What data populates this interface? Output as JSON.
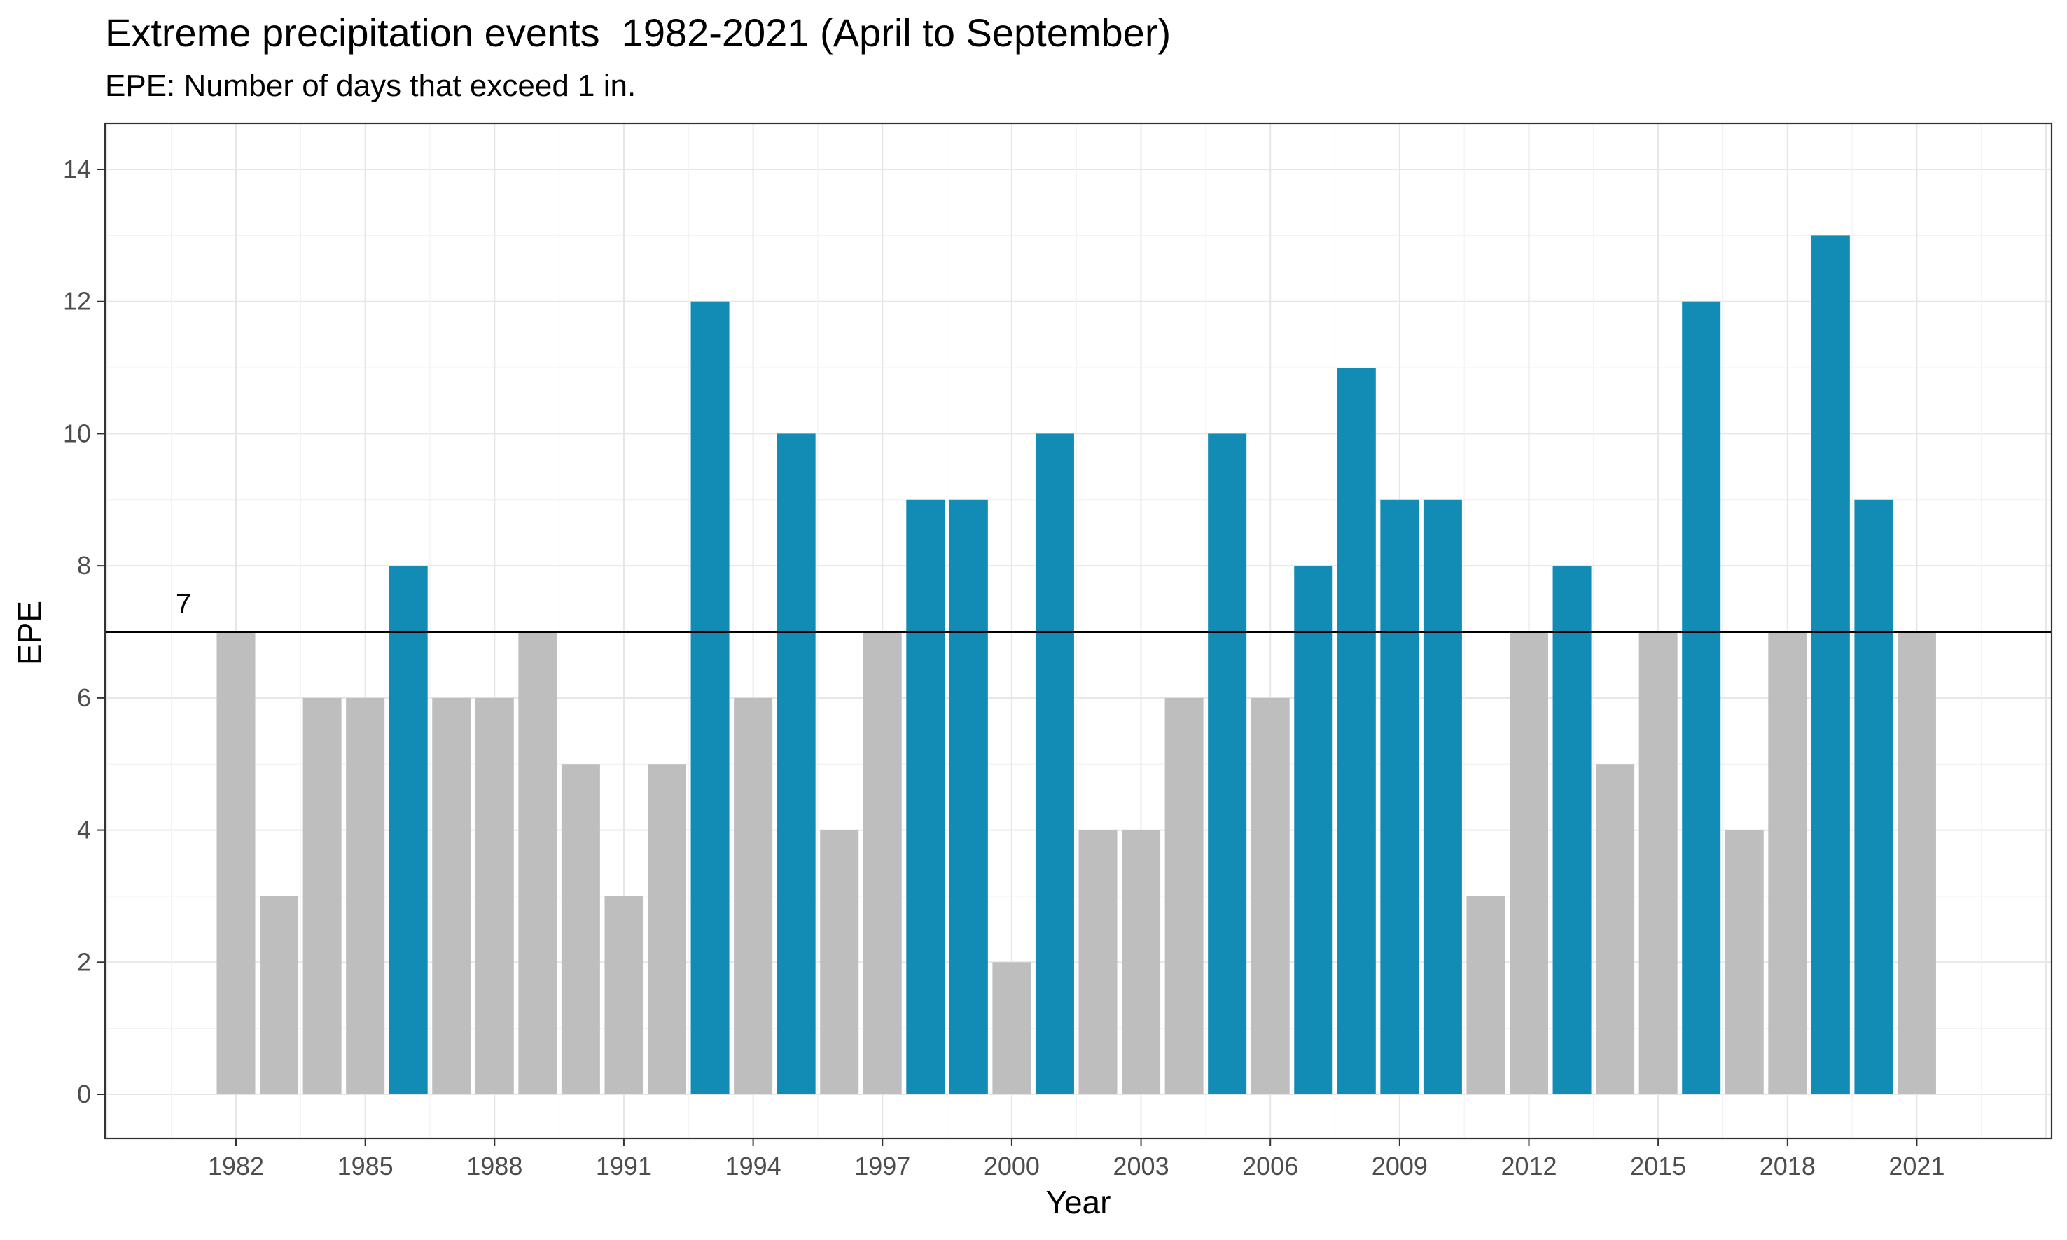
{
  "chart_data": {
    "type": "bar",
    "title": "Extreme precipitation events  1982-2021 (April to September)",
    "subtitle": "EPE: Number of days that exceed 1 in.",
    "xlabel": "Year",
    "ylabel": "EPE",
    "x": [
      1982,
      1983,
      1984,
      1985,
      1986,
      1987,
      1988,
      1989,
      1990,
      1991,
      1992,
      1993,
      1994,
      1995,
      1996,
      1997,
      1998,
      1999,
      2000,
      2001,
      2002,
      2003,
      2004,
      2005,
      2006,
      2007,
      2008,
      2009,
      2010,
      2011,
      2012,
      2013,
      2014,
      2015,
      2016,
      2017,
      2018,
      2019,
      2020,
      2021
    ],
    "values": [
      7,
      3,
      6,
      6,
      8,
      6,
      6,
      7,
      5,
      3,
      5,
      12,
      6,
      10,
      4,
      7,
      9,
      9,
      2,
      10,
      4,
      4,
      6,
      10,
      6,
      8,
      11,
      9,
      9,
      3,
      7,
      8,
      5,
      7,
      12,
      4,
      7,
      13,
      9,
      7
    ],
    "threshold": 7,
    "threshold_label": "7",
    "xticks": [
      "1982",
      "1985",
      "1988",
      "1991",
      "1994",
      "1997",
      "2000",
      "2003",
      "2006",
      "2009",
      "2012",
      "2015",
      "2018",
      "2021"
    ],
    "yticks": [
      "0",
      "2",
      "4",
      "6",
      "8",
      "10",
      "12",
      "14"
    ],
    "ylim": [
      0,
      14
    ],
    "grid": true,
    "colors": {
      "above": "#128bb5",
      "at_or_below": "#bebebe",
      "threshold_line": "#000000"
    }
  }
}
